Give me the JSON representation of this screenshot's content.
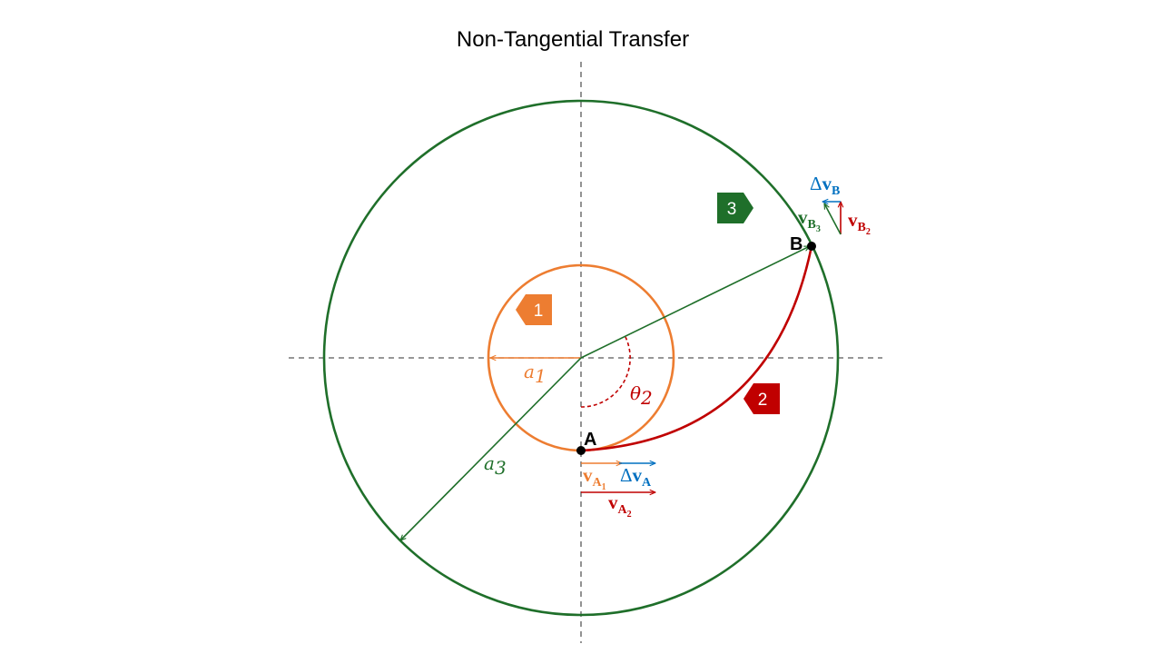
{
  "title": "Non-Tangential Transfer",
  "colors": {
    "orbit1": "#ED7D31",
    "orbit2": "#C00000",
    "orbit3": "#1F6F2A",
    "delta": "#0070C0",
    "axis": "#595959"
  },
  "points": {
    "a": "A",
    "b": "B"
  },
  "tags": {
    "orbit1": "1",
    "orbit2": "2",
    "orbit3": "3"
  },
  "labels": {
    "a1": {
      "sym": "a",
      "sub": "1"
    },
    "a3": {
      "sym": "a",
      "sub": "3"
    },
    "theta2": {
      "sym": "θ",
      "sub": "2"
    }
  },
  "vectors": {
    "vA1": {
      "sym": "v",
      "sub": "A",
      "subsub": "1"
    },
    "vA2": {
      "sym": "v",
      "sub": "A",
      "subsub": "2"
    },
    "dvA": {
      "delta": "Δ",
      "sym": "v",
      "sub": "A"
    },
    "vB2": {
      "sym": "v",
      "sub": "B",
      "subsub": "2"
    },
    "vB3": {
      "sym": "v",
      "sub": "B",
      "subsub": "3"
    },
    "dvB": {
      "delta": "Δ",
      "sym": "v",
      "sub": "B"
    }
  }
}
